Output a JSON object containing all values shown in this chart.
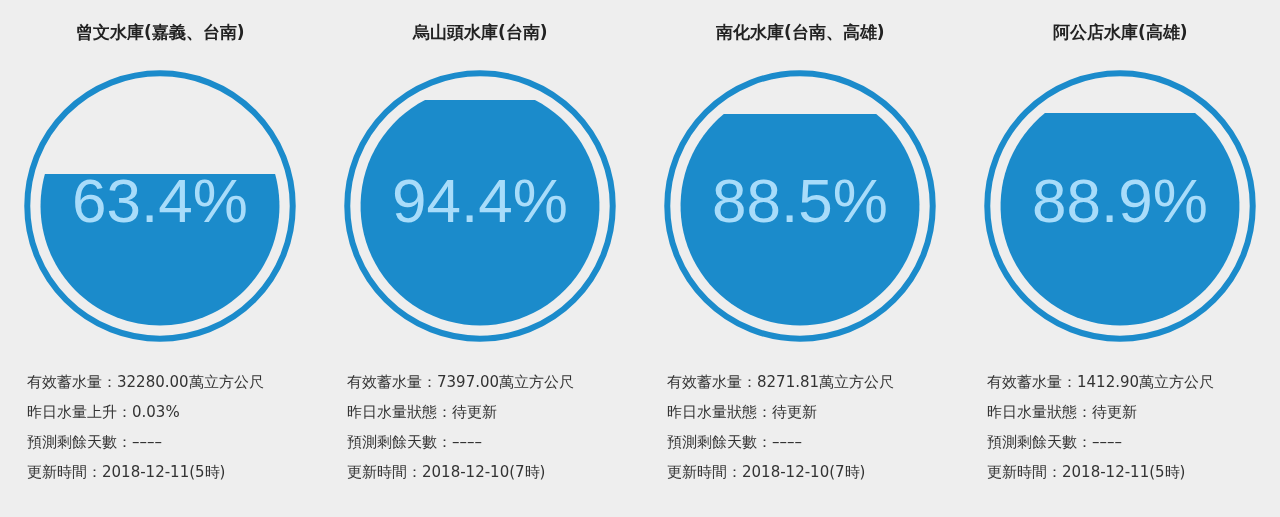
{
  "chart_data": [
    {
      "type": "other",
      "title": "曾文水庫(嘉義、台南)",
      "values": [
        63.4
      ],
      "value_labels": [
        "63.4%"
      ],
      "color": "#1b8bcb",
      "annotations": [
        "有效蓄水量：32280.00萬立方公尺",
        "昨日水量上升：0.03%",
        "預測剩餘天數：––––",
        "更新時間：2018-12-11(5時)"
      ]
    },
    {
      "type": "other",
      "title": "烏山頭水庫(台南)",
      "values": [
        94.4
      ],
      "value_labels": [
        "94.4%"
      ],
      "color": "#1b8bcb",
      "annotations": [
        "有效蓄水量：7397.00萬立方公尺",
        "昨日水量狀態：待更新",
        "預測剩餘天數：––––",
        "更新時間：2018-12-10(7時)"
      ]
    },
    {
      "type": "other",
      "title": "南化水庫(台南、高雄)",
      "values": [
        88.5
      ],
      "value_labels": [
        "88.5%"
      ],
      "color": "#1b8bcb",
      "annotations": [
        "有效蓄水量：8271.81萬立方公尺",
        "昨日水量狀態：待更新",
        "預測剩餘天數：––––",
        "更新時間：2018-12-10(7時)"
      ]
    },
    {
      "type": "other",
      "title": "阿公店水庫(高雄)",
      "values": [
        88.9
      ],
      "value_labels": [
        "88.9%"
      ],
      "color": "#1b8bcb",
      "annotations": [
        "有效蓄水量：1412.90萬立方公尺",
        "昨日水量狀態：待更新",
        "預測剩餘天數：––––",
        "更新時間：2018-12-11(5時)"
      ]
    }
  ]
}
